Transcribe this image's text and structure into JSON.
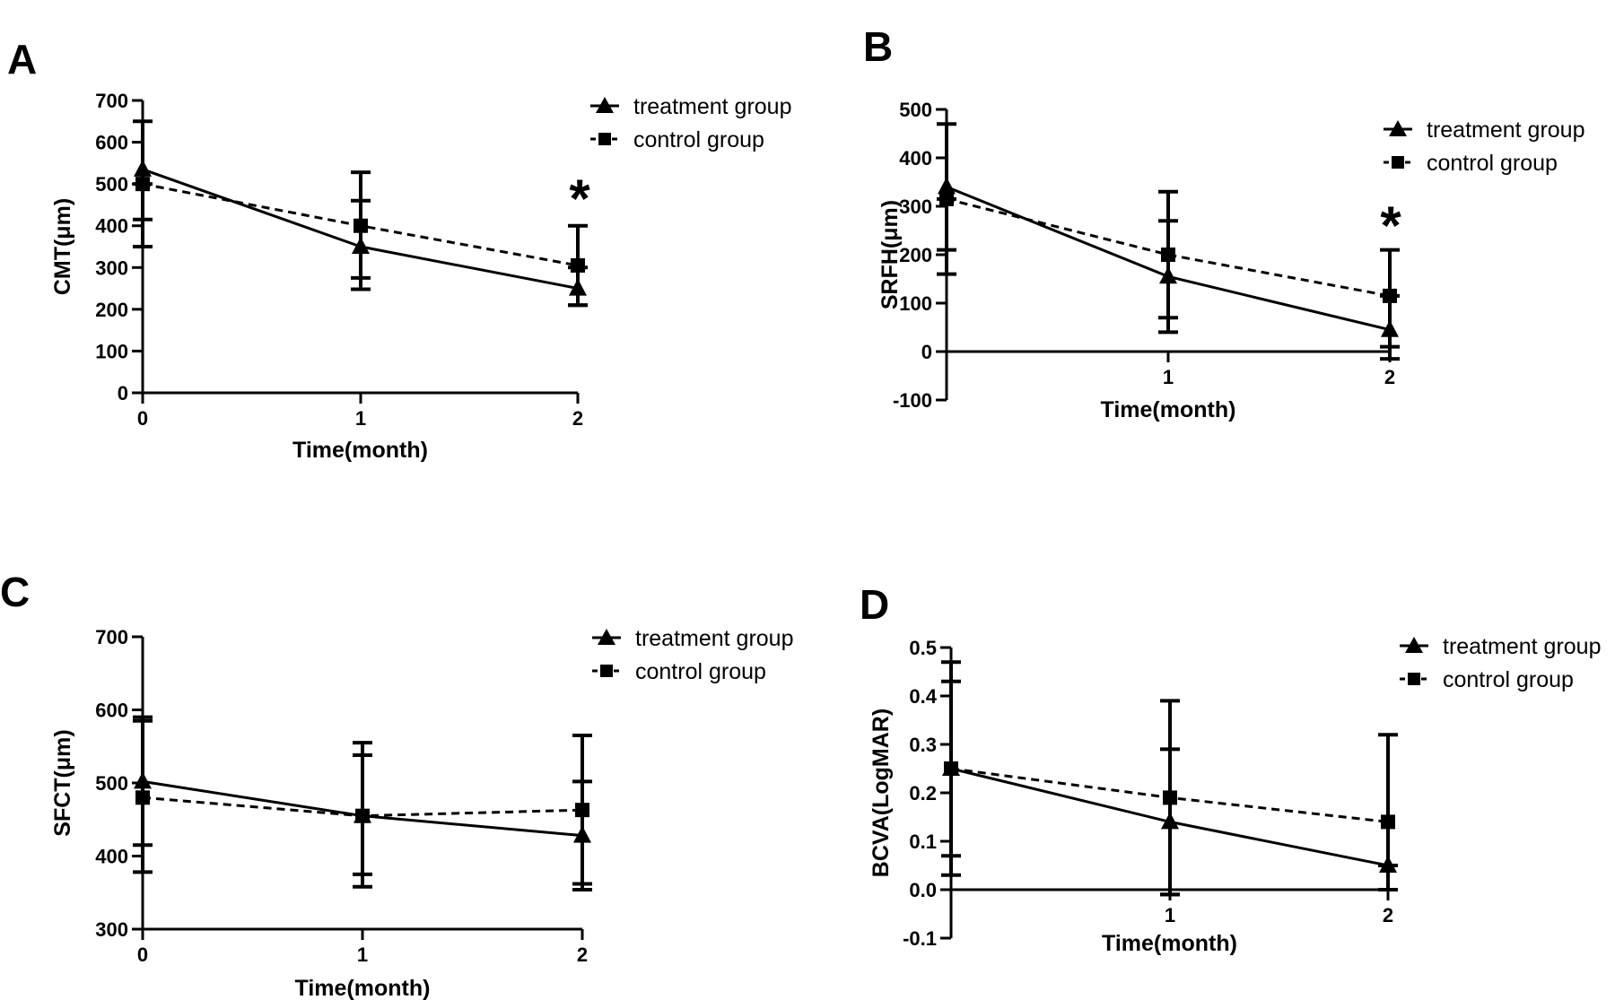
{
  "legend": {
    "treatment": "treatment group",
    "control": "control group"
  },
  "chart_data": [
    {
      "panel": "A",
      "type": "line",
      "ylabel": "CMT(μm)",
      "xlabel": "Time(month)",
      "x": [
        0,
        1,
        2
      ],
      "x_tick_labels": [
        "0",
        "1",
        "2"
      ],
      "ylim": [
        0,
        700
      ],
      "y_ticks": [
        0,
        100,
        200,
        300,
        400,
        500,
        600,
        700
      ],
      "y_tick_labels": [
        "0",
        "100",
        "200",
        "300",
        "400",
        "500",
        "600",
        "700"
      ],
      "series": [
        {
          "name": "treatment group",
          "style": "solid",
          "marker": "triangle",
          "values": [
            535,
            350,
            250
          ],
          "err_low": [
            350,
            275,
            210
          ],
          "err_high": [
            650,
            460,
            400
          ]
        },
        {
          "name": "control group",
          "style": "dashed",
          "marker": "square",
          "values": [
            500,
            400,
            305
          ],
          "err_low": [
            415,
            248,
            210
          ],
          "err_high": [
            500,
            528,
            300
          ]
        }
      ],
      "annotation": {
        "text": "*",
        "x": 2
      },
      "grid": false,
      "legend_position": "top-right"
    },
    {
      "panel": "B",
      "type": "line",
      "ylabel": "SRFH(μm)",
      "xlabel": "Time(month)",
      "x": [
        0,
        1,
        2
      ],
      "x_tick_labels": [
        "",
        "1",
        "2"
      ],
      "ylim": [
        -100,
        500
      ],
      "y_ticks": [
        -100,
        0,
        100,
        200,
        300,
        400,
        500
      ],
      "y_tick_labels": [
        "-100",
        "0",
        "100",
        "200",
        "300",
        "400",
        "500"
      ],
      "series": [
        {
          "name": "treatment group",
          "style": "solid",
          "marker": "triangle",
          "values": [
            340,
            155,
            45
          ],
          "err_low": [
            210,
            70,
            10
          ],
          "err_high": [
            470,
            270,
            210
          ]
        },
        {
          "name": "control group",
          "style": "dashed",
          "marker": "square",
          "values": [
            315,
            200,
            115
          ],
          "err_low": [
            160,
            40,
            -15
          ],
          "err_high": [
            315,
            330,
            115
          ]
        }
      ],
      "annotation": {
        "text": "*",
        "x": 2
      },
      "grid": false,
      "legend_position": "top-right"
    },
    {
      "panel": "C",
      "type": "line",
      "ylabel": "SFCT(μm)",
      "xlabel": "Time(month)",
      "x": [
        0,
        1,
        2
      ],
      "x_tick_labels": [
        "0",
        "1",
        "2"
      ],
      "ylim": [
        300,
        700
      ],
      "y_ticks": [
        300,
        400,
        500,
        600,
        700
      ],
      "y_tick_labels": [
        "300",
        "400",
        "500",
        "600",
        "700"
      ],
      "series": [
        {
          "name": "treatment group",
          "style": "solid",
          "marker": "triangle",
          "values": [
            502,
            455,
            428
          ],
          "err_low": [
            415,
            375,
            362
          ],
          "err_high": [
            590,
            538,
            502
          ]
        },
        {
          "name": "control group",
          "style": "dashed",
          "marker": "square",
          "values": [
            480,
            455,
            463
          ],
          "err_low": [
            378,
            358,
            354
          ],
          "err_high": [
            585,
            555,
            565
          ]
        }
      ],
      "grid": false,
      "legend_position": "top-right"
    },
    {
      "panel": "D",
      "type": "line",
      "ylabel": "BCVA(LogMAR)",
      "xlabel": "Time(month)",
      "x": [
        0,
        1,
        2
      ],
      "x_tick_labels": [
        "",
        "1",
        "2"
      ],
      "ylim": [
        -0.1,
        0.5
      ],
      "y_ticks": [
        -0.1,
        0.0,
        0.1,
        0.2,
        0.3,
        0.4,
        0.5
      ],
      "y_tick_labels": [
        "-0.1",
        "0.0",
        "0.1",
        "0.2",
        "0.3",
        "0.4",
        "0.5"
      ],
      "series": [
        {
          "name": "treatment group",
          "style": "solid",
          "marker": "triangle",
          "values": [
            0.25,
            0.14,
            0.05
          ],
          "err_low": [
            0.07,
            -0.01,
            0.0
          ],
          "err_high": [
            0.43,
            0.29,
            0.05
          ]
        },
        {
          "name": "control group",
          "style": "dashed",
          "marker": "square",
          "values": [
            0.25,
            0.19,
            0.14
          ],
          "err_low": [
            0.03,
            -0.01,
            0.0
          ],
          "err_high": [
            0.47,
            0.39,
            0.32
          ]
        }
      ],
      "grid": false,
      "legend_position": "top-right"
    }
  ]
}
